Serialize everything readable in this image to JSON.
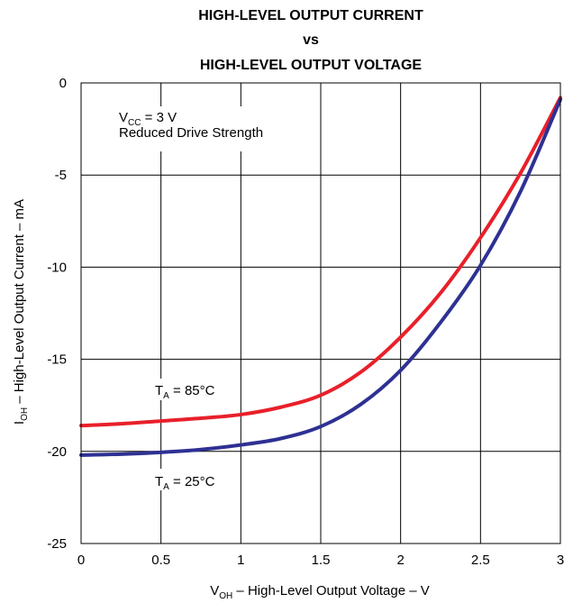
{
  "chart_data": {
    "type": "line",
    "title_lines": [
      "HIGH-LEVEL OUTPUT CURRENT",
      "vs",
      "HIGH-LEVEL OUTPUT VOLTAGE"
    ],
    "xlabel": {
      "main": "V",
      "sub": "OH",
      "rest": " – High-Level Output Voltage – V"
    },
    "ylabel": {
      "main": "I",
      "sub": "OH",
      "rest": " – High-Level Output Current – mA"
    },
    "xlim": [
      0,
      3
    ],
    "ylim": [
      -25,
      0
    ],
    "x_ticks": [
      0,
      0.5,
      1,
      1.5,
      2,
      2.5,
      3
    ],
    "x_tick_labels": [
      "0",
      "0.5",
      "1",
      "1.5",
      "2",
      "2.5",
      "3"
    ],
    "y_ticks": [
      0,
      -5,
      -10,
      -15,
      -20,
      -25
    ],
    "y_tick_labels": [
      "0",
      "-5",
      "-10",
      "-15",
      "-20",
      "-25"
    ],
    "grid": true,
    "series": [
      {
        "name": {
          "main": "T",
          "sub": "A",
          "rest": " = 85°C"
        },
        "color": "#e8202a",
        "x": [
          0,
          0.25,
          0.5,
          0.75,
          1.0,
          1.25,
          1.5,
          1.75,
          2.0,
          2.25,
          2.5,
          2.75,
          3.0
        ],
        "y": [
          -18.6,
          -18.5,
          -18.35,
          -18.2,
          -18.0,
          -17.6,
          -16.95,
          -15.7,
          -13.8,
          -11.4,
          -8.4,
          -4.9,
          -0.8
        ]
      },
      {
        "name": {
          "main": "T",
          "sub": "A",
          "rest": " = 25°C"
        },
        "color": "#2e3192",
        "x": [
          0,
          0.25,
          0.5,
          0.75,
          1.0,
          1.25,
          1.5,
          1.75,
          2.0,
          2.25,
          2.5,
          2.75,
          3.0
        ],
        "y": [
          -20.2,
          -20.15,
          -20.05,
          -19.9,
          -19.65,
          -19.3,
          -18.65,
          -17.45,
          -15.6,
          -13.0,
          -9.9,
          -5.9,
          -0.9
        ]
      }
    ],
    "annotations": {
      "condition": {
        "main": "V",
        "sub": "CC",
        "rest": " = 3 V"
      },
      "condition_line2": "Reduced Drive Strength"
    }
  }
}
